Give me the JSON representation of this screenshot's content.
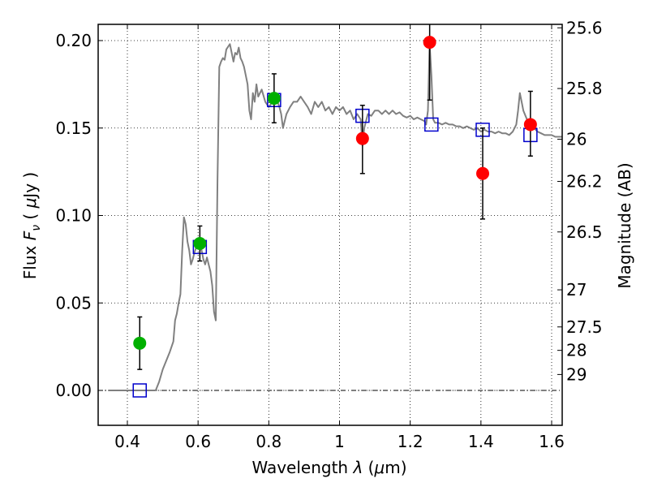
{
  "chart_data": {
    "type": "scatter",
    "xlabel": "Wavelength  λ (μm)",
    "ylabel": "Flux  F_ν  ( μJy )",
    "ylabel2": "Magnitude (AB)",
    "xlim": [
      0.35,
      1.63
    ],
    "ylim": [
      -0.02,
      0.21
    ],
    "grid": true,
    "x_ticks": [
      0.4,
      0.6,
      0.8,
      1.0,
      1.2,
      1.4,
      1.6
    ],
    "x_tick_labels": [
      "0.4",
      "0.6",
      "0.8",
      "1",
      "1.2",
      "1.4",
      "1.6"
    ],
    "y_ticks": [
      0.0,
      0.05,
      0.1,
      0.15,
      0.2
    ],
    "y_tick_labels": [
      "0.00",
      "0.05",
      "0.10",
      "0.15",
      "0.20"
    ],
    "mag_ticks": [
      {
        "label": "25.6",
        "flux": 0.2073
      },
      {
        "label": "25.8",
        "flux": 0.1726
      },
      {
        "label": "26",
        "flux": 0.1436
      },
      {
        "label": "26.2",
        "flux": 0.1195
      },
      {
        "label": "26.5",
        "flux": 0.0906
      },
      {
        "label": "27",
        "flux": 0.0575
      },
      {
        "label": "27.5",
        "flux": 0.0363
      },
      {
        "label": "28",
        "flux": 0.0229
      },
      {
        "label": "29",
        "flux": 0.0091
      }
    ],
    "series": [
      {
        "color": "#808080",
        "points": [
          [
            0.35,
            0.0
          ],
          [
            0.48,
            0.0
          ],
          [
            0.49,
            0.005
          ],
          [
            0.5,
            0.012
          ],
          [
            0.52,
            0.022
          ],
          [
            0.53,
            0.028
          ],
          [
            0.535,
            0.04
          ],
          [
            0.54,
            0.044
          ],
          [
            0.545,
            0.05
          ],
          [
            0.55,
            0.055
          ],
          [
            0.555,
            0.08
          ],
          [
            0.56,
            0.099
          ],
          [
            0.565,
            0.095
          ],
          [
            0.57,
            0.085
          ],
          [
            0.575,
            0.08
          ],
          [
            0.58,
            0.072
          ],
          [
            0.585,
            0.075
          ],
          [
            0.59,
            0.079
          ],
          [
            0.595,
            0.082
          ],
          [
            0.6,
            0.085
          ],
          [
            0.605,
            0.083
          ],
          [
            0.61,
            0.08
          ],
          [
            0.615,
            0.075
          ],
          [
            0.62,
            0.072
          ],
          [
            0.625,
            0.076
          ],
          [
            0.63,
            0.072
          ],
          [
            0.635,
            0.068
          ],
          [
            0.64,
            0.06
          ],
          [
            0.645,
            0.045
          ],
          [
            0.65,
            0.04
          ],
          [
            0.655,
            0.12
          ],
          [
            0.66,
            0.185
          ],
          [
            0.665,
            0.188
          ],
          [
            0.67,
            0.19
          ],
          [
            0.675,
            0.189
          ],
          [
            0.68,
            0.195
          ],
          [
            0.69,
            0.198
          ],
          [
            0.695,
            0.193
          ],
          [
            0.7,
            0.188
          ],
          [
            0.705,
            0.193
          ],
          [
            0.71,
            0.192
          ],
          [
            0.715,
            0.196
          ],
          [
            0.72,
            0.19
          ],
          [
            0.725,
            0.188
          ],
          [
            0.73,
            0.185
          ],
          [
            0.735,
            0.18
          ],
          [
            0.74,
            0.175
          ],
          [
            0.745,
            0.16
          ],
          [
            0.75,
            0.155
          ],
          [
            0.755,
            0.17
          ],
          [
            0.76,
            0.165
          ],
          [
            0.765,
            0.175
          ],
          [
            0.77,
            0.168
          ],
          [
            0.78,
            0.172
          ],
          [
            0.79,
            0.165
          ],
          [
            0.8,
            0.162
          ],
          [
            0.81,
            0.165
          ],
          [
            0.82,
            0.168
          ],
          [
            0.83,
            0.162
          ],
          [
            0.835,
            0.158
          ],
          [
            0.84,
            0.15
          ],
          [
            0.85,
            0.158
          ],
          [
            0.86,
            0.162
          ],
          [
            0.87,
            0.165
          ],
          [
            0.88,
            0.165
          ],
          [
            0.89,
            0.168
          ],
          [
            0.9,
            0.165
          ],
          [
            0.91,
            0.162
          ],
          [
            0.92,
            0.158
          ],
          [
            0.93,
            0.165
          ],
          [
            0.94,
            0.162
          ],
          [
            0.95,
            0.165
          ],
          [
            0.96,
            0.16
          ],
          [
            0.97,
            0.162
          ],
          [
            0.98,
            0.158
          ],
          [
            0.99,
            0.162
          ],
          [
            1.0,
            0.16
          ],
          [
            1.01,
            0.162
          ],
          [
            1.02,
            0.158
          ],
          [
            1.03,
            0.16
          ],
          [
            1.04,
            0.155
          ],
          [
            1.05,
            0.158
          ],
          [
            1.06,
            0.155
          ],
          [
            1.065,
            0.14
          ],
          [
            1.07,
            0.15
          ],
          [
            1.08,
            0.158
          ],
          [
            1.09,
            0.157
          ],
          [
            1.1,
            0.16
          ],
          [
            1.11,
            0.16
          ],
          [
            1.12,
            0.158
          ],
          [
            1.13,
            0.16
          ],
          [
            1.14,
            0.158
          ],
          [
            1.15,
            0.16
          ],
          [
            1.16,
            0.158
          ],
          [
            1.17,
            0.159
          ],
          [
            1.18,
            0.157
          ],
          [
            1.19,
            0.156
          ],
          [
            1.2,
            0.157
          ],
          [
            1.21,
            0.155
          ],
          [
            1.22,
            0.156
          ],
          [
            1.23,
            0.155
          ],
          [
            1.24,
            0.154
          ],
          [
            1.245,
            0.152
          ],
          [
            1.25,
            0.16
          ],
          [
            1.255,
            0.198
          ],
          [
            1.26,
            0.18
          ],
          [
            1.265,
            0.155
          ],
          [
            1.27,
            0.153
          ],
          [
            1.28,
            0.153
          ],
          [
            1.29,
            0.152
          ],
          [
            1.3,
            0.153
          ],
          [
            1.31,
            0.152
          ],
          [
            1.32,
            0.152
          ],
          [
            1.33,
            0.151
          ],
          [
            1.34,
            0.151
          ],
          [
            1.35,
            0.15
          ],
          [
            1.36,
            0.151
          ],
          [
            1.37,
            0.15
          ],
          [
            1.38,
            0.149
          ],
          [
            1.39,
            0.15
          ],
          [
            1.4,
            0.148
          ],
          [
            1.41,
            0.149
          ],
          [
            1.42,
            0.148
          ],
          [
            1.43,
            0.148
          ],
          [
            1.44,
            0.147
          ],
          [
            1.45,
            0.148
          ],
          [
            1.46,
            0.147
          ],
          [
            1.47,
            0.147
          ],
          [
            1.48,
            0.146
          ],
          [
            1.49,
            0.148
          ],
          [
            1.5,
            0.152
          ],
          [
            1.505,
            0.16
          ],
          [
            1.51,
            0.17
          ],
          [
            1.515,
            0.165
          ],
          [
            1.52,
            0.16
          ],
          [
            1.53,
            0.155
          ],
          [
            1.54,
            0.152
          ],
          [
            1.55,
            0.15
          ],
          [
            1.56,
            0.148
          ],
          [
            1.57,
            0.147
          ],
          [
            1.58,
            0.146
          ],
          [
            1.59,
            0.146
          ],
          [
            1.6,
            0.146
          ],
          [
            1.61,
            0.145
          ],
          [
            1.62,
            0.145
          ],
          [
            1.63,
            0.145
          ]
        ]
      },
      {
        "marker": "circle",
        "color": "#00b000",
        "points": [
          {
            "x": 0.435,
            "y": 0.027,
            "yerr": [
              0.015,
              0.015
            ]
          },
          {
            "x": 0.605,
            "y": 0.084,
            "yerr": [
              0.01,
              0.01
            ]
          },
          {
            "x": 0.815,
            "y": 0.167,
            "yerr": [
              0.014,
              0.014
            ]
          }
        ]
      },
      {
        "marker": "circle",
        "color": "#ff0000",
        "points": [
          {
            "x": 1.065,
            "y": 0.144,
            "yerr": [
              0.02,
              0.019
            ]
          },
          {
            "x": 1.255,
            "y": 0.199,
            "yerr": [
              0.033,
              0.011
            ]
          },
          {
            "x": 1.405,
            "y": 0.124,
            "yerr": [
              0.026,
              0.026
            ]
          },
          {
            "x": 1.54,
            "y": 0.152,
            "yerr": [
              0.018,
              0.019
            ]
          }
        ]
      },
      {
        "marker": "square",
        "color": "#0000cc",
        "points": [
          {
            "x": 0.435,
            "y": 0.0
          },
          {
            "x": 0.605,
            "y": 0.082
          },
          {
            "x": 0.815,
            "y": 0.166
          },
          {
            "x": 1.065,
            "y": 0.157
          },
          {
            "x": 1.26,
            "y": 0.152
          },
          {
            "x": 1.405,
            "y": 0.149
          },
          {
            "x": 1.54,
            "y": 0.146
          }
        ]
      }
    ]
  }
}
